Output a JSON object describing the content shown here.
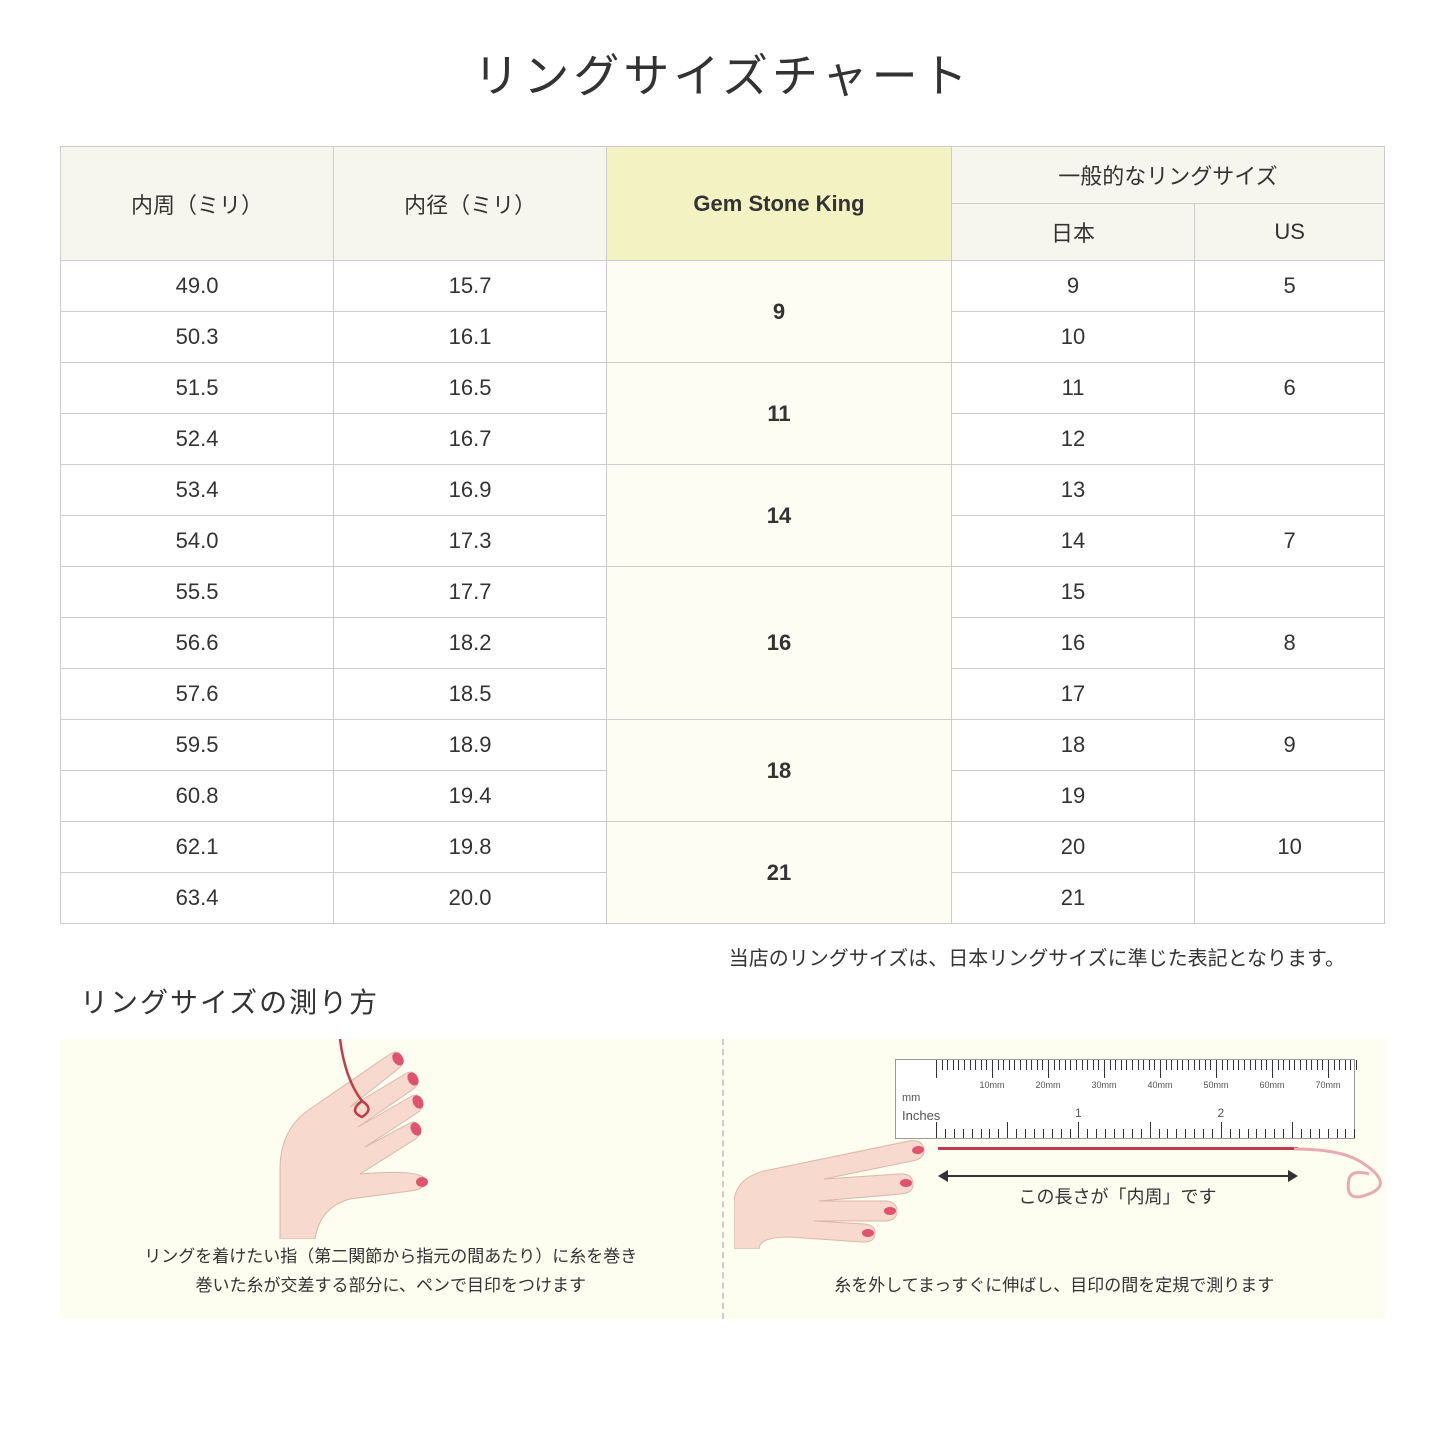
{
  "title": "リングサイズチャート",
  "columns": {
    "circumference": "内周（ミリ）",
    "diameter": "内径（ミリ）",
    "gsk": "Gem Stone King",
    "common_header": "一般的なリングサイズ",
    "japan": "日本",
    "us": "US"
  },
  "groups": [
    {
      "gsk": "9",
      "rows": [
        {
          "c": "49.0",
          "d": "15.7",
          "jp": "9",
          "us": "5"
        },
        {
          "c": "50.3",
          "d": "16.1",
          "jp": "10",
          "us": ""
        }
      ]
    },
    {
      "gsk": "11",
      "rows": [
        {
          "c": "51.5",
          "d": "16.5",
          "jp": "11",
          "us": "6"
        },
        {
          "c": "52.4",
          "d": "16.7",
          "jp": "12",
          "us": ""
        }
      ]
    },
    {
      "gsk": "14",
      "rows": [
        {
          "c": "53.4",
          "d": "16.9",
          "jp": "13",
          "us": ""
        },
        {
          "c": "54.0",
          "d": "17.3",
          "jp": "14",
          "us": "7"
        }
      ]
    },
    {
      "gsk": "16",
      "rows": [
        {
          "c": "55.5",
          "d": "17.7",
          "jp": "15",
          "us": ""
        },
        {
          "c": "56.6",
          "d": "18.2",
          "jp": "16",
          "us": "8"
        },
        {
          "c": "57.6",
          "d": "18.5",
          "jp": "17",
          "us": ""
        }
      ]
    },
    {
      "gsk": "18",
      "rows": [
        {
          "c": "59.5",
          "d": "18.9",
          "jp": "18",
          "us": "9"
        },
        {
          "c": "60.8",
          "d": "19.4",
          "jp": "19",
          "us": ""
        }
      ]
    },
    {
      "gsk": "21",
      "rows": [
        {
          "c": "62.1",
          "d": "19.8",
          "jp": "20",
          "us": "10"
        },
        {
          "c": "63.4",
          "d": "20.0",
          "jp": "21",
          "us": ""
        }
      ]
    }
  ],
  "note": "当店のリングサイズは、日本リングサイズに準じた表記となります。",
  "subheading": "リングサイズの測り方",
  "caption_left": "リングを着けたい指（第二関節から指元の間あたり）に糸を巻き\n巻いた糸が交差する部分に、ペンで目印をつけます",
  "caption_right": "糸を外してまっすぐに伸ばし、目印の間を定規で測ります",
  "arrow_label": "この長さが「内周」です",
  "ruler": {
    "mm_labels": [
      "10mm",
      "20mm",
      "30mm",
      "40mm",
      "50mm",
      "60mm",
      "70mm"
    ],
    "unit_mm": "mm",
    "unit_in": "Inches",
    "inch_labels": [
      "1",
      "2"
    ]
  },
  "colors": {
    "header_bg": "#f7f6ee",
    "gsk_header_bg": "#f2f2c3",
    "gsk_cell_bg": "#fdfdf3",
    "border": "#cccccc",
    "howto_bg": "#fdfdf0",
    "thread": "#c23b4a",
    "skin": "#f8d9cd",
    "nail": "#e0536f"
  }
}
